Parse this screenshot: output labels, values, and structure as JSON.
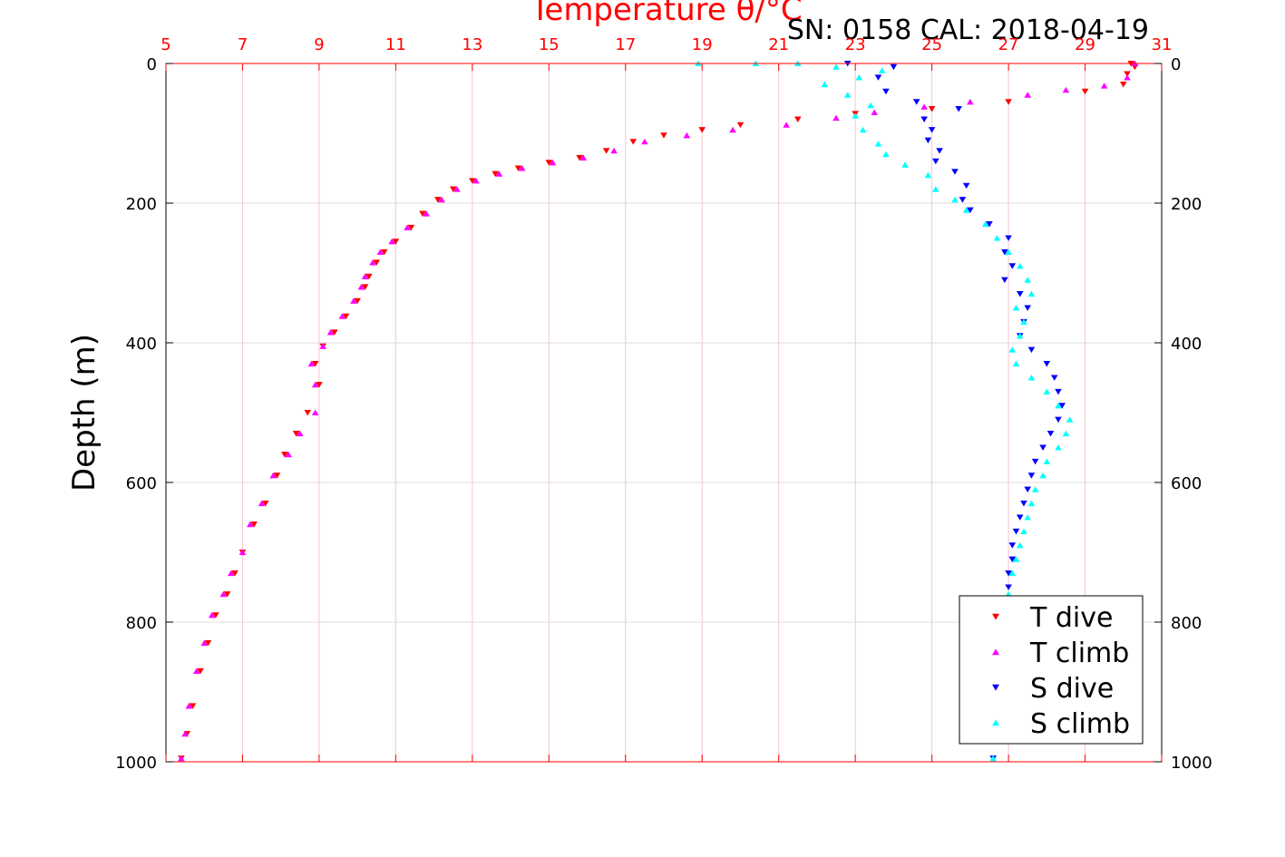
{
  "chart_data": {
    "type": "scatter",
    "title": "Temperature θ/°C",
    "subtitle": "SN: 0158  CAL: 2018-04-19",
    "ylabel": "Depth (m)",
    "x_top_range": [
      5,
      31
    ],
    "x_top_ticks": [
      "5",
      "7",
      "9",
      "11",
      "13",
      "15",
      "17",
      "19",
      "21",
      "23",
      "25",
      "27",
      "29",
      "31"
    ],
    "y_range": [
      0,
      1000
    ],
    "y_reversed": true,
    "y_ticks": [
      "0",
      "200",
      "400",
      "600",
      "800",
      "1000"
    ],
    "grid": true,
    "legend_position": "bottom-right",
    "colors": {
      "title": "#ff0000",
      "top_axis": "#ff0000",
      "t_dive": "#ff0000",
      "t_climb": "#ff00ff",
      "s_dive": "#0000ff",
      "s_climb": "#00ffff",
      "grid": "#dcdcdc"
    },
    "series": [
      {
        "name": "T dive",
        "marker": "triangle-down",
        "color": "#ff0000",
        "points": [
          [
            30.2,
            0
          ],
          [
            30.3,
            5
          ],
          [
            30.1,
            15
          ],
          [
            30.0,
            30
          ],
          [
            29.0,
            40
          ],
          [
            27.0,
            55
          ],
          [
            25.0,
            65
          ],
          [
            23.0,
            72
          ],
          [
            21.5,
            80
          ],
          [
            20.0,
            88
          ],
          [
            19.0,
            95
          ],
          [
            18.0,
            103
          ],
          [
            17.2,
            112
          ],
          [
            16.5,
            125
          ],
          [
            15.8,
            135
          ],
          [
            15.0,
            142
          ],
          [
            14.2,
            150
          ],
          [
            13.6,
            158
          ],
          [
            13.0,
            168
          ],
          [
            12.5,
            180
          ],
          [
            12.1,
            195
          ],
          [
            11.7,
            215
          ],
          [
            11.4,
            235
          ],
          [
            11.0,
            255
          ],
          [
            10.7,
            270
          ],
          [
            10.5,
            285
          ],
          [
            10.3,
            305
          ],
          [
            10.2,
            320
          ],
          [
            10.0,
            340
          ],
          [
            9.7,
            362
          ],
          [
            9.4,
            385
          ],
          [
            9.1,
            405
          ],
          [
            8.9,
            430
          ],
          [
            9.0,
            460
          ],
          [
            8.7,
            500
          ],
          [
            8.4,
            530
          ],
          [
            8.1,
            560
          ],
          [
            7.9,
            590
          ],
          [
            7.6,
            630
          ],
          [
            7.3,
            660
          ],
          [
            7.0,
            700
          ],
          [
            6.8,
            730
          ],
          [
            6.6,
            760
          ],
          [
            6.3,
            790
          ],
          [
            6.1,
            830
          ],
          [
            5.9,
            870
          ],
          [
            5.7,
            920
          ],
          [
            5.55,
            960
          ],
          [
            5.4,
            995
          ]
        ]
      },
      {
        "name": "T climb",
        "marker": "triangle-up",
        "color": "#ff00ff",
        "points": [
          [
            30.3,
            0
          ],
          [
            30.1,
            20
          ],
          [
            29.5,
            32
          ],
          [
            28.5,
            38
          ],
          [
            27.5,
            45
          ],
          [
            26.0,
            55
          ],
          [
            24.8,
            62
          ],
          [
            23.5,
            70
          ],
          [
            22.5,
            78
          ],
          [
            21.2,
            88
          ],
          [
            19.8,
            95
          ],
          [
            18.6,
            103
          ],
          [
            17.5,
            112
          ],
          [
            16.7,
            125
          ],
          [
            15.9,
            135
          ],
          [
            15.1,
            142
          ],
          [
            14.3,
            150
          ],
          [
            13.7,
            158
          ],
          [
            13.1,
            168
          ],
          [
            12.6,
            180
          ],
          [
            12.2,
            195
          ],
          [
            11.8,
            215
          ],
          [
            11.3,
            235
          ],
          [
            10.9,
            255
          ],
          [
            10.6,
            270
          ],
          [
            10.4,
            285
          ],
          [
            10.2,
            305
          ],
          [
            10.1,
            320
          ],
          [
            9.9,
            340
          ],
          [
            9.6,
            362
          ],
          [
            9.3,
            385
          ],
          [
            9.1,
            405
          ],
          [
            8.8,
            430
          ],
          [
            8.9,
            460
          ],
          [
            8.9,
            500
          ],
          [
            8.5,
            530
          ],
          [
            8.2,
            560
          ],
          [
            7.8,
            590
          ],
          [
            7.5,
            630
          ],
          [
            7.2,
            660
          ],
          [
            7.0,
            700
          ],
          [
            6.7,
            730
          ],
          [
            6.5,
            760
          ],
          [
            6.2,
            790
          ],
          [
            6.0,
            830
          ],
          [
            5.8,
            870
          ],
          [
            5.6,
            920
          ],
          [
            5.5,
            960
          ],
          [
            5.4,
            995
          ]
        ]
      },
      {
        "name": "S dive",
        "marker": "triangle-down",
        "color": "#0000ff",
        "points": [
          [
            22.8,
            0
          ],
          [
            24.0,
            5
          ],
          [
            23.6,
            20
          ],
          [
            23.8,
            40
          ],
          [
            24.6,
            55
          ],
          [
            25.7,
            65
          ],
          [
            24.8,
            80
          ],
          [
            25.0,
            95
          ],
          [
            24.9,
            110
          ],
          [
            25.2,
            125
          ],
          [
            25.1,
            140
          ],
          [
            25.6,
            155
          ],
          [
            25.9,
            175
          ],
          [
            25.8,
            195
          ],
          [
            26.0,
            210
          ],
          [
            26.5,
            230
          ],
          [
            27.0,
            250
          ],
          [
            26.9,
            270
          ],
          [
            27.1,
            290
          ],
          [
            26.9,
            310
          ],
          [
            27.3,
            330
          ],
          [
            27.5,
            350
          ],
          [
            27.4,
            370
          ],
          [
            27.3,
            390
          ],
          [
            27.6,
            410
          ],
          [
            28.0,
            430
          ],
          [
            28.2,
            450
          ],
          [
            28.3,
            470
          ],
          [
            28.4,
            490
          ],
          [
            28.3,
            510
          ],
          [
            28.1,
            530
          ],
          [
            27.9,
            550
          ],
          [
            27.7,
            570
          ],
          [
            27.6,
            590
          ],
          [
            27.5,
            610
          ],
          [
            27.4,
            630
          ],
          [
            27.3,
            650
          ],
          [
            27.2,
            670
          ],
          [
            27.1,
            690
          ],
          [
            27.1,
            710
          ],
          [
            27.0,
            730
          ],
          [
            27.0,
            750
          ],
          [
            26.9,
            780
          ],
          [
            26.9,
            810
          ],
          [
            26.8,
            840
          ],
          [
            26.8,
            870
          ],
          [
            26.7,
            900
          ],
          [
            26.7,
            930
          ],
          [
            26.7,
            960
          ],
          [
            26.6,
            995
          ]
        ]
      },
      {
        "name": "S climb",
        "marker": "triangle-up",
        "color": "#00ffff",
        "points": [
          [
            18.9,
            0
          ],
          [
            20.4,
            0
          ],
          [
            21.5,
            0
          ],
          [
            22.5,
            5
          ],
          [
            23.7,
            10
          ],
          [
            23.1,
            20
          ],
          [
            22.2,
            30
          ],
          [
            22.8,
            45
          ],
          [
            23.4,
            60
          ],
          [
            23.0,
            75
          ],
          [
            23.2,
            95
          ],
          [
            23.6,
            115
          ],
          [
            23.8,
            130
          ],
          [
            24.3,
            145
          ],
          [
            24.9,
            160
          ],
          [
            25.1,
            180
          ],
          [
            25.6,
            195
          ],
          [
            25.9,
            210
          ],
          [
            26.4,
            230
          ],
          [
            26.7,
            250
          ],
          [
            27.0,
            270
          ],
          [
            27.3,
            290
          ],
          [
            27.5,
            310
          ],
          [
            27.6,
            330
          ],
          [
            27.2,
            350
          ],
          [
            27.4,
            370
          ],
          [
            27.3,
            390
          ],
          [
            27.1,
            410
          ],
          [
            27.2,
            430
          ],
          [
            27.6,
            450
          ],
          [
            28.0,
            470
          ],
          [
            28.3,
            490
          ],
          [
            28.6,
            510
          ],
          [
            28.5,
            530
          ],
          [
            28.3,
            550
          ],
          [
            28.0,
            570
          ],
          [
            27.9,
            590
          ],
          [
            27.7,
            610
          ],
          [
            27.6,
            630
          ],
          [
            27.5,
            650
          ],
          [
            27.4,
            670
          ],
          [
            27.3,
            690
          ],
          [
            27.2,
            710
          ],
          [
            27.1,
            730
          ],
          [
            27.0,
            760
          ],
          [
            26.9,
            790
          ],
          [
            26.8,
            830
          ],
          [
            26.8,
            870
          ],
          [
            26.7,
            910
          ],
          [
            26.7,
            950
          ],
          [
            26.6,
            995
          ]
        ]
      }
    ]
  }
}
